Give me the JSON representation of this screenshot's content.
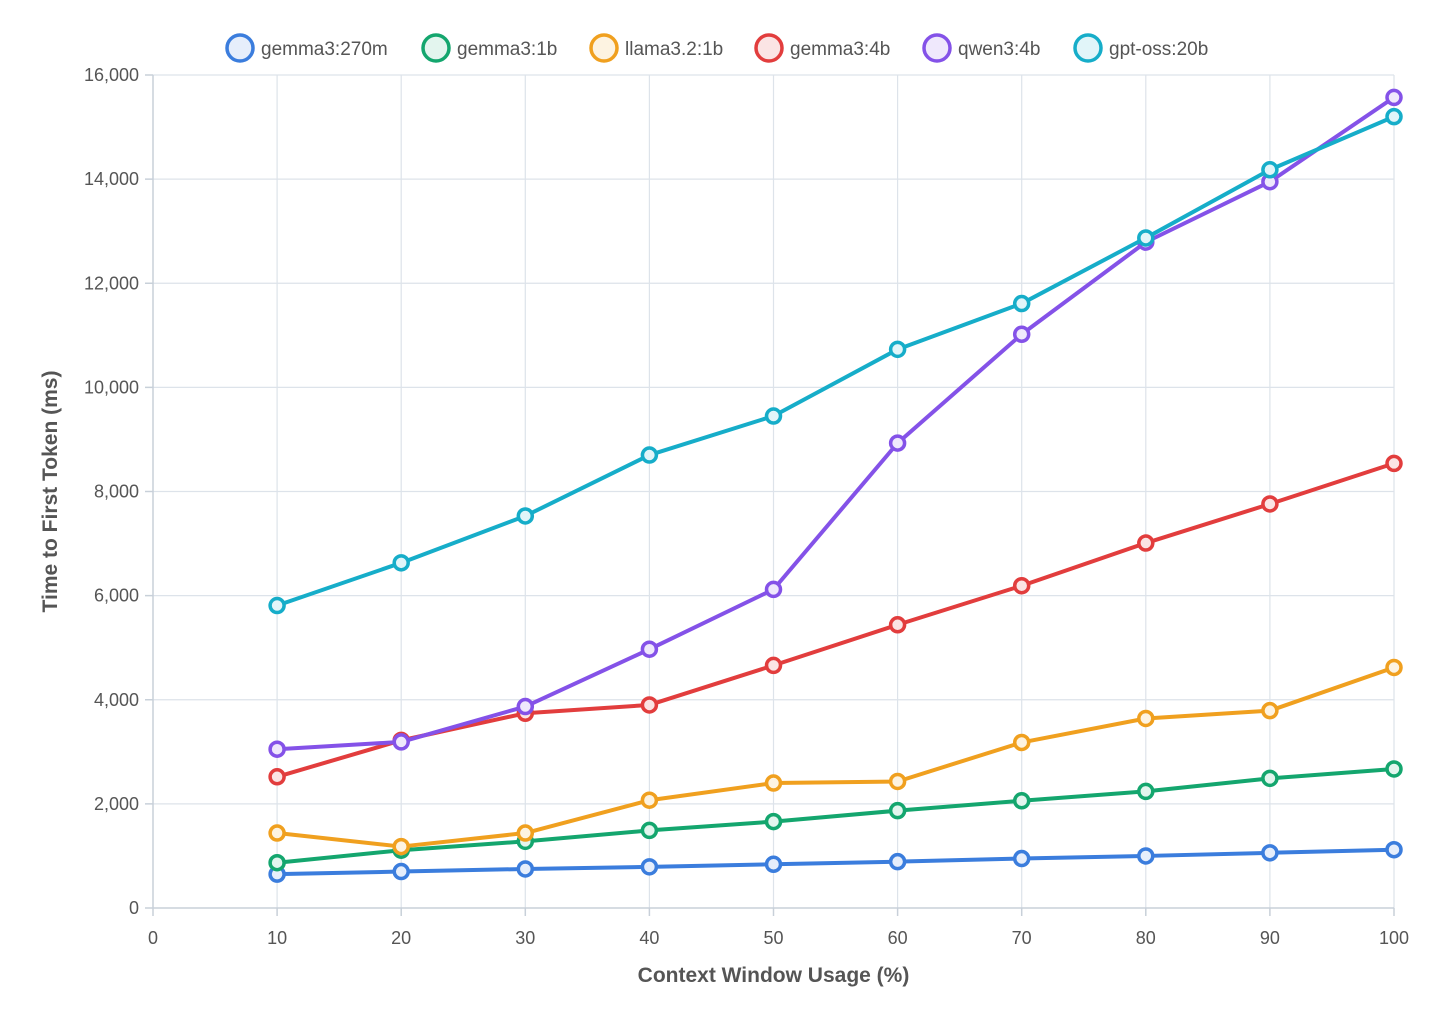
{
  "chart_data": {
    "type": "line",
    "title": "",
    "xlabel": "Context Window Usage (%)",
    "ylabel": "Time to First Token (ms)",
    "xlim": [
      0,
      100
    ],
    "ylim": [
      0,
      16000
    ],
    "x_ticks": [
      0,
      10,
      20,
      30,
      40,
      50,
      60,
      70,
      80,
      90,
      100
    ],
    "y_ticks": [
      0,
      2000,
      4000,
      6000,
      8000,
      10000,
      12000,
      14000,
      16000
    ],
    "x_tick_labels": [
      "0",
      "10",
      "20",
      "30",
      "40",
      "50",
      "60",
      "70",
      "80",
      "90",
      "100"
    ],
    "y_tick_labels": [
      "0",
      "2,000",
      "4,000",
      "6,000",
      "8,000",
      "10,000",
      "12,000",
      "14,000",
      "16,000"
    ],
    "grid": true,
    "legend_position": "top-center",
    "x": [
      10,
      20,
      30,
      40,
      50,
      60,
      70,
      80,
      90,
      100
    ],
    "series": [
      {
        "name": "gemma3:270m",
        "color": "#3b7ddd",
        "fill": "#e6eefb",
        "values": [
          650,
          700,
          750,
          790,
          840,
          890,
          950,
          1000,
          1060,
          1120
        ]
      },
      {
        "name": "gemma3:1b",
        "color": "#14a66e",
        "fill": "#e3f5ee",
        "values": [
          870,
          1110,
          1280,
          1490,
          1660,
          1870,
          2060,
          2240,
          2490,
          2670
        ]
      },
      {
        "name": "llama3.2:1b",
        "color": "#f0a01f",
        "fill": "#fdf3e1",
        "values": [
          1440,
          1180,
          1440,
          2070,
          2400,
          2430,
          3180,
          3640,
          3790,
          4620
        ]
      },
      {
        "name": "gemma3:4b",
        "color": "#e23d3d",
        "fill": "#fbe4e4",
        "values": [
          2520,
          3220,
          3740,
          3900,
          4660,
          5440,
          6190,
          7010,
          7760,
          8540
        ]
      },
      {
        "name": "qwen3:4b",
        "color": "#8452e8",
        "fill": "#efe8fc",
        "values": [
          3050,
          3190,
          3870,
          4970,
          6120,
          8930,
          11020,
          12790,
          13950,
          15570
        ]
      },
      {
        "name": "gpt-oss:20b",
        "color": "#16adc9",
        "fill": "#e1f5f9",
        "values": [
          5810,
          6630,
          7530,
          8700,
          9450,
          10730,
          11610,
          12870,
          14180,
          15200
        ]
      }
    ]
  }
}
